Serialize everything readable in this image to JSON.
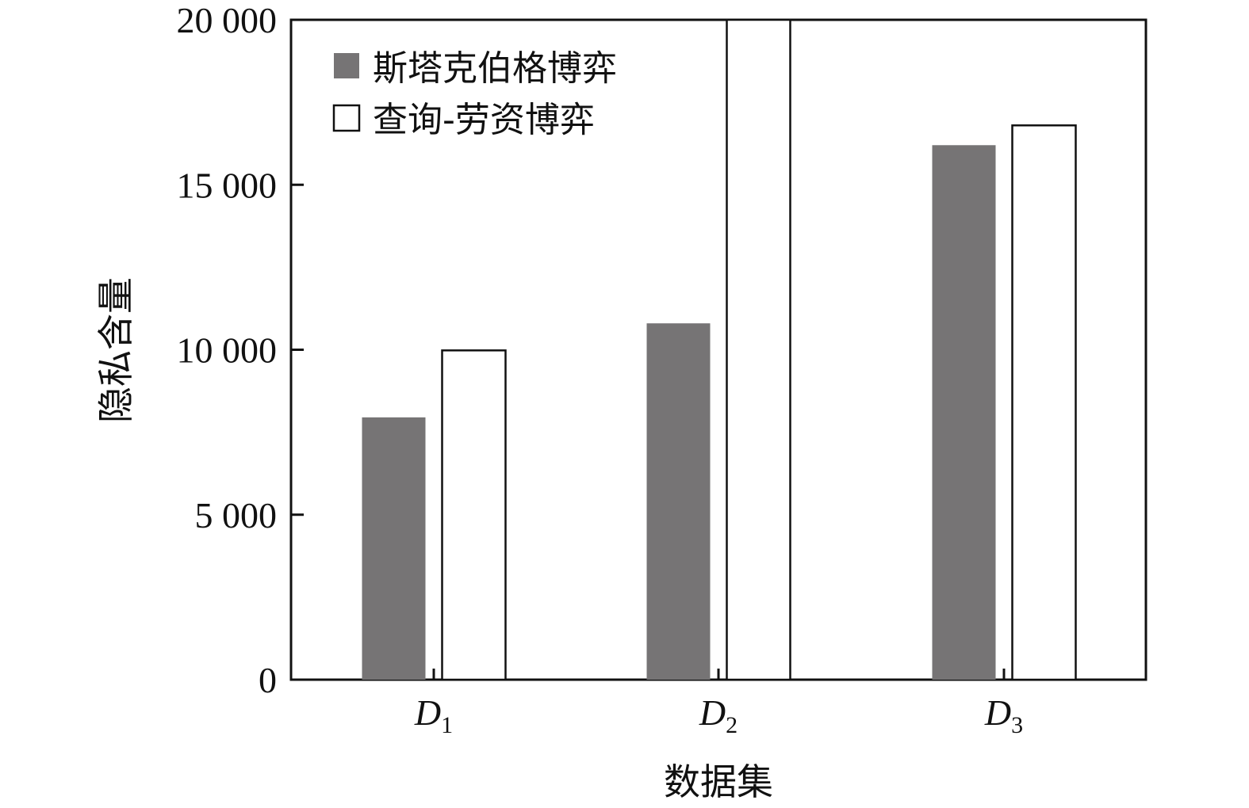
{
  "chart_data": {
    "type": "bar",
    "categories": [
      {
        "letter": "D",
        "sub": "1"
      },
      {
        "letter": "D",
        "sub": "2"
      },
      {
        "letter": "D",
        "sub": "3"
      }
    ],
    "series": [
      {
        "name": "斯塔克伯格博弈",
        "values": [
          7950,
          10800,
          16200
        ],
        "fill": "#767475"
      },
      {
        "name": "查询-劳资博弈",
        "values": [
          9980,
          20000,
          16800
        ],
        "fill": "#ffffff"
      }
    ],
    "xlabel": "数据集",
    "ylabel": "隐私含量",
    "ylim": [
      0,
      20000
    ],
    "yticks": [
      {
        "value": 0,
        "label": "0"
      },
      {
        "value": 5000,
        "label": "5 000"
      },
      {
        "value": 10000,
        "label": "10 000"
      },
      {
        "value": 15000,
        "label": "15 000"
      },
      {
        "value": 20000,
        "label": "20 000"
      }
    ],
    "legend_position": "top-left",
    "grid": false,
    "stroke_color": "#111111"
  }
}
